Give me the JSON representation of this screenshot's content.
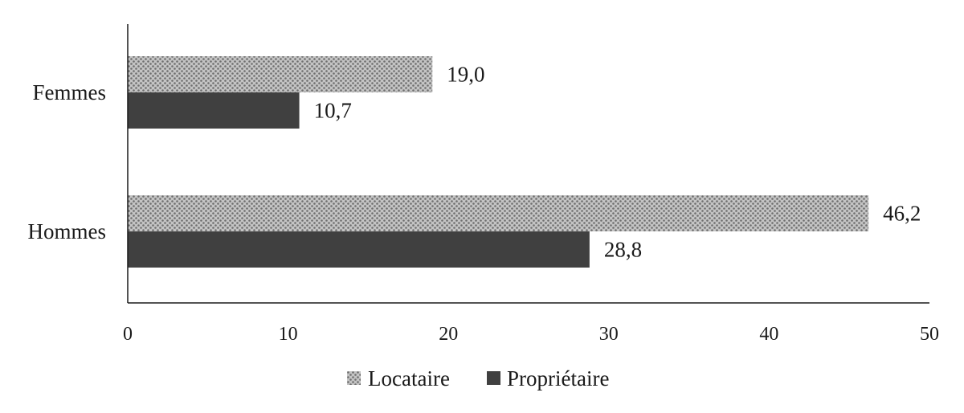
{
  "chart_data": {
    "type": "bar",
    "orientation": "horizontal",
    "categories": [
      "Hommes",
      "Femmes"
    ],
    "series": [
      {
        "name": "Locataire",
        "values": [
          46.2,
          19.0
        ],
        "labels": [
          "46,2",
          "19,0"
        ],
        "color": "#b8b8b8",
        "pattern": "crosshatch"
      },
      {
        "name": "Propriétaire",
        "values": [
          28.8,
          10.7
        ],
        "labels": [
          "28,8",
          "10,7"
        ],
        "color": "#404040",
        "pattern": "solid"
      }
    ],
    "xlim": [
      0,
      50
    ],
    "xticks": [
      0,
      10,
      20,
      30,
      40,
      50
    ],
    "xtick_labels": [
      "0",
      "10",
      "20",
      "30",
      "40",
      "50"
    ],
    "grid": false,
    "legend_position": "bottom"
  }
}
